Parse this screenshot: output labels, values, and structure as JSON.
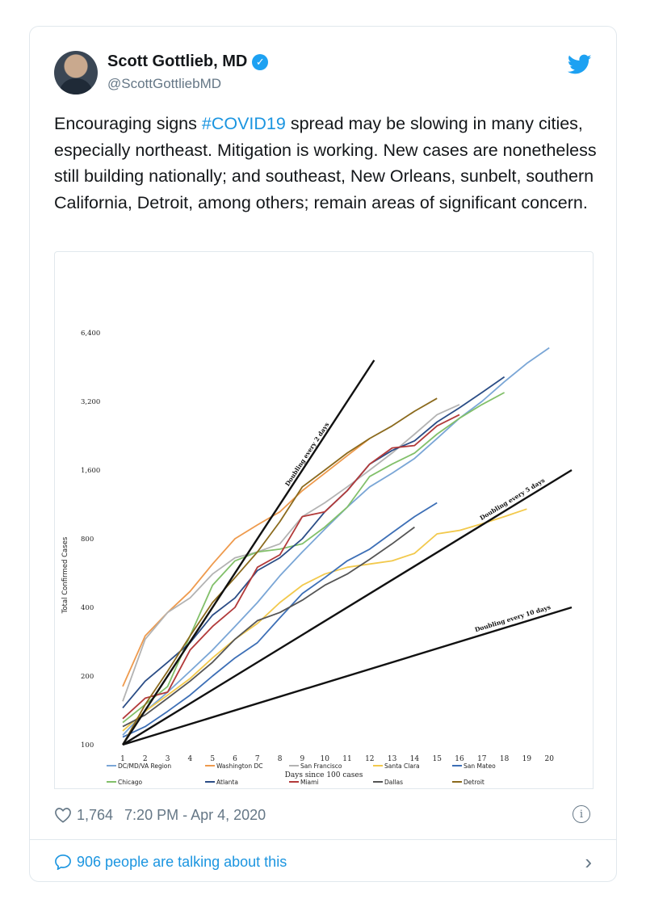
{
  "tweet": {
    "author_name": "Scott Gottlieb, MD",
    "handle": "@ScottGottliebMD",
    "verified_icon": "verified-badge-icon",
    "text_before": "Encouraging signs ",
    "hashtag": "#COVID19",
    "text_after": " spread may be slowing in many cities, especially northeast. Mitigation is working. New cases are nonetheless still building nationally; and southeast, New Orleans, sunbelt, southern California, Detroit, among others; remain areas of significant concern.",
    "likes": "1,764",
    "timestamp": "7:20 PM - Apr 4, 2020",
    "talking": "906 people are talking about this",
    "colors": {
      "link": "#1b95e0",
      "muted": "#657786",
      "border": "#e1e8ed",
      "twitter_blue": "#1da1f2"
    }
  },
  "chart_data": {
    "type": "line",
    "y_scale": "log2",
    "ylim": [
      100,
      6400
    ],
    "xlim": [
      1,
      21
    ],
    "ylabel": "Total Confirmed Cases",
    "xlabel": "Days since 100 cases",
    "y_ticks": [
      "100",
      "200",
      "400",
      "800",
      "1,600",
      "3,200",
      "6,400"
    ],
    "x_ticks": [
      "1",
      "2",
      "3",
      "4",
      "5",
      "6",
      "7",
      "8",
      "9",
      "10",
      "11",
      "12",
      "13",
      "14",
      "15",
      "16",
      "17",
      "18",
      "19",
      "20"
    ],
    "reference_lines": [
      {
        "label": "Doubling every 2 days",
        "days": 2
      },
      {
        "label": "Doubling every 5 days",
        "days": 5
      },
      {
        "label": "Doubling every 10 days",
        "days": 10
      }
    ],
    "series": [
      {
        "name": "DC/MD/VA Region",
        "color": "#7aa6d6",
        "values": [
          110,
          140,
          170,
          210,
          260,
          330,
          420,
          550,
          700,
          880,
          1100,
          1350,
          1550,
          1800,
          2200,
          2700,
          3200,
          3900,
          4700,
          5500
        ]
      },
      {
        "name": "Washington DC",
        "color": "#ee9a4d",
        "values": [
          180,
          300,
          380,
          470,
          620,
          800,
          920,
          1050,
          1300,
          1550,
          1850,
          2200
        ]
      },
      {
        "name": "San Francisco",
        "color": "#b3b3b3",
        "values": [
          155,
          290,
          380,
          440,
          560,
          660,
          700,
          760,
          1000,
          1150,
          1350,
          1600,
          1900,
          2300,
          2800,
          3100
        ]
      },
      {
        "name": "Santa Clara",
        "color": "#f2c94c",
        "values": [
          115,
          140,
          165,
          195,
          240,
          290,
          340,
          420,
          500,
          560,
          600,
          620,
          640,
          690,
          840,
          870,
          930,
          1000,
          1080
        ]
      },
      {
        "name": "San Mateo",
        "color": "#3d6fb6",
        "values": [
          108,
          120,
          140,
          165,
          200,
          240,
          280,
          360,
          460,
          540,
          640,
          720,
          850,
          1000,
          1150
        ]
      },
      {
        "name": "Chicago",
        "color": "#82c06a",
        "values": [
          125,
          150,
          180,
          300,
          500,
          640,
          700,
          720,
          760,
          900,
          1100,
          1500,
          1700,
          1900,
          2300,
          2700,
          3100,
          3500
        ]
      },
      {
        "name": "Atlanta",
        "color": "#2b4d86",
        "values": [
          145,
          190,
          230,
          280,
          370,
          440,
          580,
          660,
          800,
          1050,
          1300,
          1700,
          1950,
          2150,
          2600,
          3000,
          3500,
          4100
        ]
      },
      {
        "name": "Miami",
        "color": "#b23a3a",
        "values": [
          130,
          160,
          170,
          260,
          330,
          400,
          600,
          680,
          1000,
          1050,
          1300,
          1700,
          2000,
          2050,
          2500,
          2800
        ]
      },
      {
        "name": "Dallas",
        "color": "#555555",
        "values": [
          120,
          135,
          160,
          190,
          230,
          290,
          350,
          380,
          430,
          500,
          560,
          650,
          760,
          900
        ]
      },
      {
        "name": "Detroit",
        "color": "#8b6a1d",
        "values": [
          100,
          150,
          210,
          300,
          420,
          540,
          700,
          950,
          1350,
          1600,
          1900,
          2200,
          2500,
          2900,
          3300
        ]
      }
    ]
  }
}
